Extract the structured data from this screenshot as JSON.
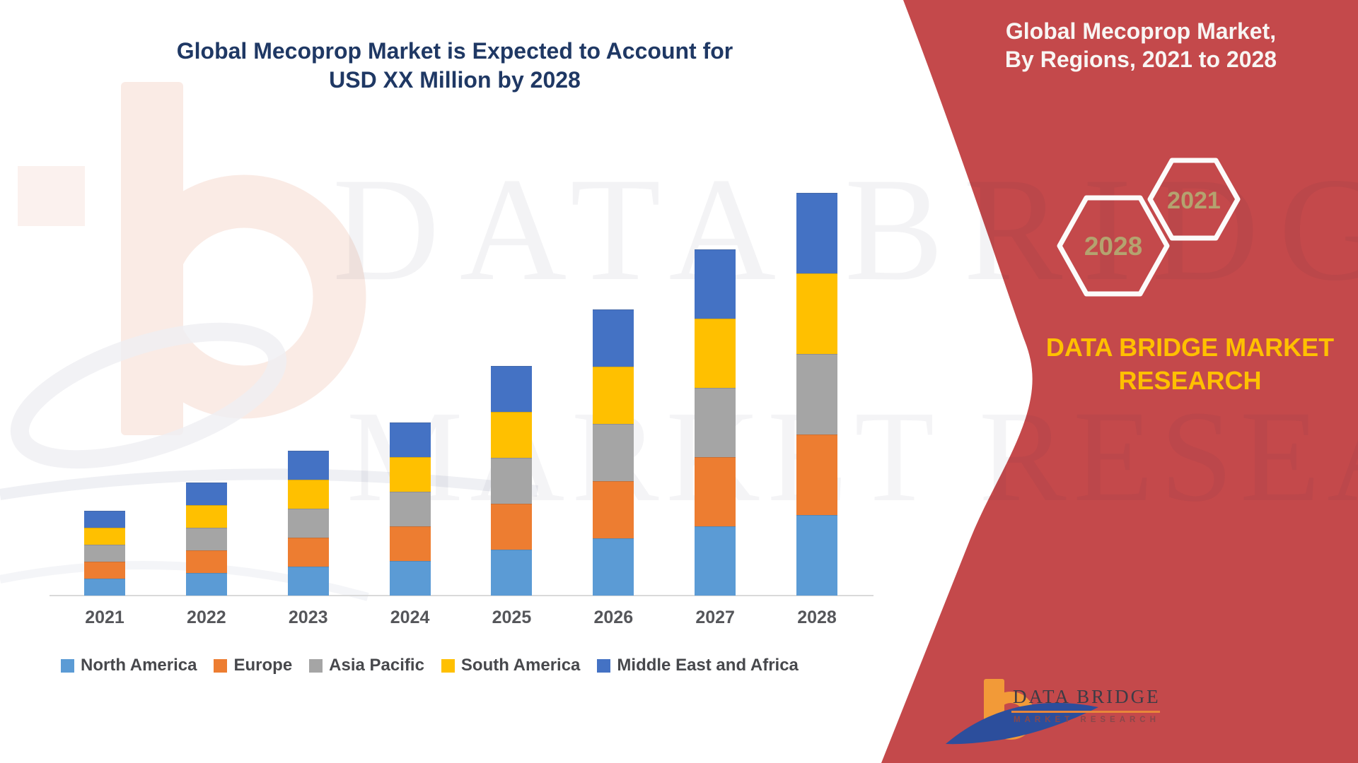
{
  "title": {
    "line1": "Global Mecoprop Market is Expected to Account for",
    "line2": "USD XX Million by 2028"
  },
  "panel": {
    "title_line1": "Global Mecoprop Market,",
    "title_line2": "By Regions, 2021 to 2028",
    "hex_start_year": "2021",
    "hex_end_year": "2028",
    "brand_line1": "DATA BRIDGE MARKET",
    "brand_line2": "RESEARCH",
    "colors": {
      "background": "#C4494B",
      "title_text": "#F8F5F3",
      "brand_text": "#FFC000",
      "hex_stroke": "#FCFBFA",
      "hex_year_text": "#B4A36F"
    }
  },
  "logo": {
    "name": "DATA BRIDGE",
    "subtitle": "MARKET RESEARCH",
    "colors": {
      "mark_orange": "#F29A38",
      "mark_blue": "#2C4E9C",
      "name_text": "#3C3C46",
      "subtitle_text": "#8A484B"
    }
  },
  "watermark": {
    "line1": "DATA BRIDGE",
    "line2": "MARKET RESEARCH"
  },
  "chart_data": {
    "type": "bar",
    "stacked": true,
    "title": "Global Mecoprop Market is Expected to Account for USD XX Million by 2028",
    "categories": [
      "2021",
      "2022",
      "2023",
      "2024",
      "2025",
      "2026",
      "2027",
      "2028"
    ],
    "series": [
      {
        "name": "North America",
        "color": "#5B9BD5",
        "values": [
          24,
          32,
          41,
          49,
          65,
          81,
          98,
          114
        ]
      },
      {
        "name": "Europe",
        "color": "#ED7D31",
        "values": [
          24,
          32,
          41,
          49,
          65,
          81,
          98,
          114
        ]
      },
      {
        "name": "Asia Pacific",
        "color": "#A5A5A5",
        "values": [
          24,
          32,
          41,
          49,
          65,
          81,
          98,
          114
        ]
      },
      {
        "name": "South America",
        "color": "#FFC000",
        "values": [
          24,
          32,
          41,
          49,
          65,
          81,
          98,
          114
        ]
      },
      {
        "name": "Middle East and Africa",
        "color": "#4472C4",
        "values": [
          24,
          32,
          41,
          49,
          65,
          81,
          98,
          114
        ]
      }
    ],
    "stack_totals": [
      120,
      160,
      205,
      245,
      325,
      405,
      490,
      570
    ],
    "value_axis": {
      "visible": false,
      "unit": "USD Million (shown as XX placeholder; values estimated from bar heights, regions approximately equal within each year)"
    },
    "xlabel": "",
    "ylabel": "",
    "gridlines": false,
    "legend_position": "bottom",
    "stack_order_bottom_to_top": [
      "North America",
      "Europe",
      "Asia Pacific",
      "South America",
      "Middle East and Africa"
    ]
  }
}
